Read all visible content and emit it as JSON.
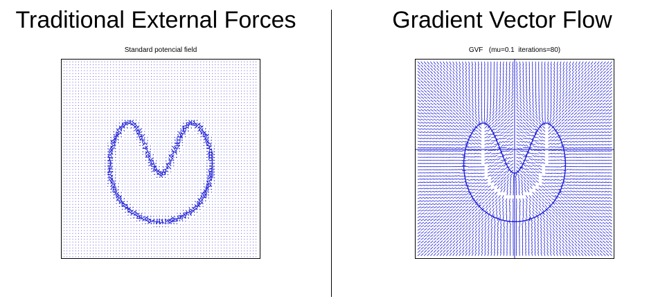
{
  "left": {
    "heading": "Traditional External Forces",
    "plot_title": "Standard potencial field"
  },
  "right": {
    "heading": "Gradient Vector Flow",
    "plot_title": "GVF   (mu=0.1  iterations=80)"
  },
  "colors": {
    "vector": "#1a1ad6",
    "dot": "#3b3bd9",
    "frame": "#000000",
    "background": "#ffffff"
  },
  "gvf_params": {
    "mu": 0.1,
    "iterations": 80
  }
}
